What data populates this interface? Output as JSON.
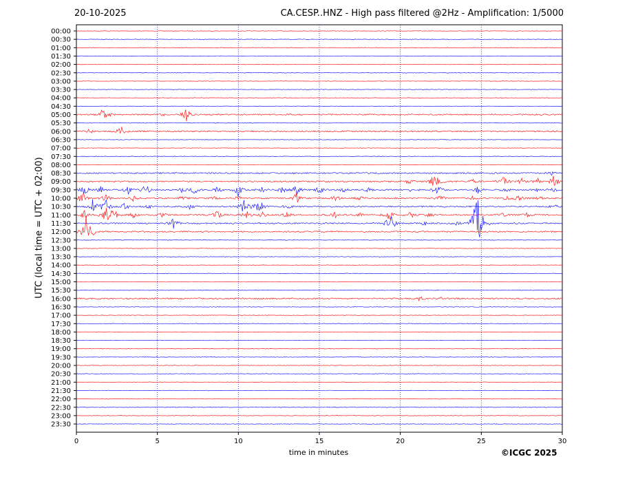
{
  "header": {
    "date": "20-10-2025",
    "title": "CA.CESP..HNZ - High pass filtered @2Hz - Amplification: 1/5000"
  },
  "footer": {
    "copyright": "©ICGC 2025"
  },
  "chart_data": {
    "type": "line",
    "title": "CA.CESP..HNZ - High pass filtered @2Hz - Amplification: 1/5000",
    "xlabel": "time in minutes",
    "ylabel": "UTC (local time = UTC + 02:00)",
    "xlim": [
      0,
      30
    ],
    "x_ticks": [
      "0",
      "5",
      "10",
      "15",
      "20",
      "25",
      "30"
    ],
    "vertical_grid": "dotted blue lines at 5, 10, 15, 20, 25",
    "rows": [
      "00:00",
      "00:30",
      "01:00",
      "01:30",
      "02:00",
      "02:30",
      "03:00",
      "03:30",
      "04:00",
      "04:30",
      "05:00",
      "05:30",
      "06:00",
      "06:30",
      "07:00",
      "07:30",
      "08:00",
      "08:30",
      "09:00",
      "09:30",
      "10:00",
      "10:30",
      "11:00",
      "11:30",
      "12:00",
      "12:30",
      "13:00",
      "13:30",
      "14:00",
      "14:30",
      "15:00",
      "15:30",
      "16:00",
      "16:30",
      "17:00",
      "17:30",
      "18:00",
      "18:30",
      "19:00",
      "19:30",
      "20:00",
      "20:30",
      "21:00",
      "21:30",
      "22:00",
      "22:30",
      "23:00",
      "23:30"
    ],
    "trace_colors": [
      "#ff0000",
      "#0000ff"
    ],
    "activity": [
      {
        "row": "05:00",
        "events": [
          [
            1.7,
            14
          ],
          [
            5.3,
            2
          ],
          [
            6.8,
            9
          ]
        ]
      },
      {
        "row": "06:00",
        "events": [
          [
            0.8,
            3
          ],
          [
            2.7,
            14
          ]
        ]
      },
      {
        "row": "08:30",
        "events": [
          [
            29.3,
            3
          ]
        ]
      },
      {
        "row": "09:00",
        "events": [
          [
            20.5,
            4
          ],
          [
            22.0,
            6
          ],
          [
            22.3,
            8
          ],
          [
            24.5,
            4
          ],
          [
            26.4,
            9
          ],
          [
            27.5,
            4
          ],
          [
            28.5,
            4
          ],
          [
            29.5,
            10
          ]
        ]
      },
      {
        "row": "09:30",
        "events": [
          [
            0.5,
            7
          ],
          [
            1.5,
            5
          ],
          [
            3.2,
            6
          ],
          [
            4.3,
            9
          ],
          [
            6.5,
            4
          ],
          [
            7.3,
            7
          ],
          [
            8.7,
            4
          ],
          [
            10.0,
            9
          ],
          [
            11.5,
            4
          ],
          [
            12.7,
            5
          ],
          [
            13.6,
            9
          ],
          [
            15.0,
            6
          ],
          [
            16.5,
            3
          ],
          [
            18.0,
            3
          ],
          [
            20.8,
            5
          ],
          [
            22.3,
            8
          ],
          [
            24.8,
            5
          ],
          [
            26.5,
            3
          ],
          [
            28.5,
            3
          ],
          [
            29.5,
            3
          ]
        ]
      },
      {
        "row": "10:00",
        "events": [
          [
            0.4,
            12
          ],
          [
            1.8,
            6
          ],
          [
            3.5,
            4
          ],
          [
            6.5,
            3
          ],
          [
            8.5,
            4
          ],
          [
            10.0,
            3
          ],
          [
            13.6,
            9
          ],
          [
            16.0,
            4
          ],
          [
            17.5,
            3
          ],
          [
            22.5,
            6
          ],
          [
            24.5,
            3
          ],
          [
            26.5,
            4
          ],
          [
            27.3,
            6
          ],
          [
            28.5,
            4
          ]
        ]
      },
      {
        "row": "10:30",
        "events": [
          [
            1.0,
            10
          ],
          [
            1.8,
            14
          ],
          [
            3.0,
            5
          ],
          [
            4.5,
            3
          ],
          [
            7.0,
            4
          ],
          [
            10.3,
            12
          ],
          [
            11.0,
            8
          ],
          [
            11.4,
            6
          ],
          [
            13.0,
            3
          ],
          [
            29.5,
            3
          ]
        ]
      },
      {
        "row": "11:00",
        "events": [
          [
            0.5,
            6
          ],
          [
            1.8,
            12
          ],
          [
            2.3,
            10
          ],
          [
            3.5,
            5
          ],
          [
            5.3,
            4
          ],
          [
            8.7,
            8
          ],
          [
            10.5,
            6
          ],
          [
            11.5,
            4
          ],
          [
            13.0,
            4
          ],
          [
            16.0,
            4
          ],
          [
            17.5,
            3
          ],
          [
            19.3,
            9
          ],
          [
            20.7,
            5
          ],
          [
            21.8,
            3
          ],
          [
            26.3,
            3
          ],
          [
            27.8,
            3
          ]
        ]
      },
      {
        "row": "11:30",
        "events": [
          [
            6.0,
            8
          ],
          [
            19.4,
            18
          ],
          [
            21.5,
            3
          ],
          [
            23.5,
            3
          ],
          [
            24.6,
            28
          ],
          [
            24.9,
            48
          ],
          [
            25.5,
            3
          ]
        ]
      },
      {
        "row": "12:00",
        "events": [
          [
            0.6,
            22
          ],
          [
            1.0,
            6
          ]
        ]
      },
      {
        "row": "16:00",
        "events": [
          [
            21.2,
            3
          ],
          [
            22.5,
            2
          ]
        ]
      }
    ]
  }
}
